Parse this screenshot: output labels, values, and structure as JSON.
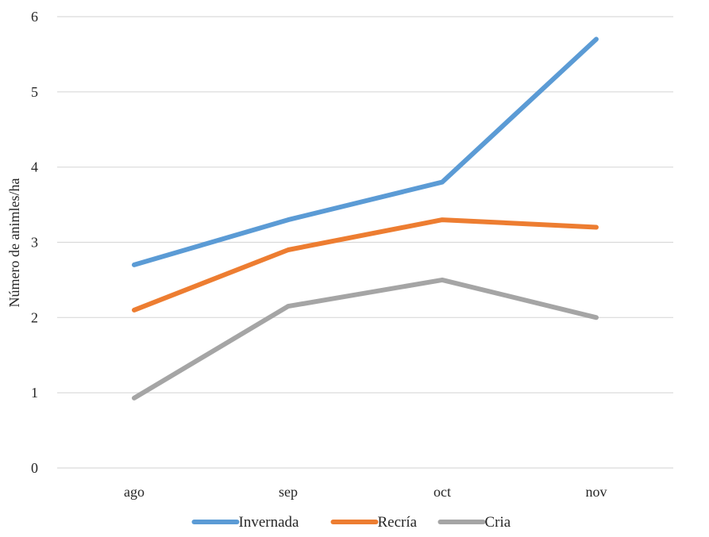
{
  "chart_data": {
    "type": "line",
    "title": "",
    "xlabel": "",
    "ylabel": "Número de animles/ha",
    "categories": [
      "ago",
      "sep",
      "oct",
      "nov"
    ],
    "ylim": [
      0,
      6
    ],
    "yticks": [
      0,
      1,
      2,
      3,
      4,
      5,
      6
    ],
    "grid": true,
    "legend": "bottom",
    "series": [
      {
        "name": "Invernada",
        "color": "#5b9bd5",
        "values": [
          2.7,
          3.3,
          3.8,
          5.7
        ]
      },
      {
        "name": "Recría",
        "color": "#ed7d31",
        "values": [
          2.1,
          2.9,
          3.3,
          3.2
        ]
      },
      {
        "name": "Cria",
        "color": "#a5a5a5",
        "values": [
          0.93,
          2.15,
          2.5,
          2.0
        ]
      }
    ]
  }
}
